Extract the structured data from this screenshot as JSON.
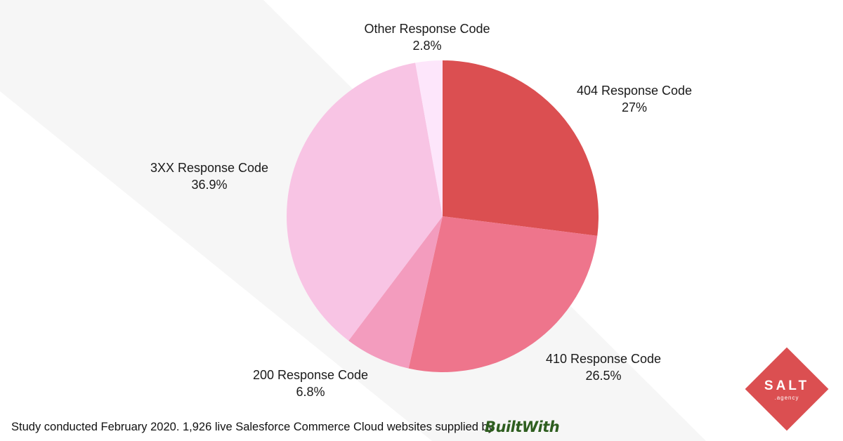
{
  "chart_data": {
    "type": "pie",
    "title": "",
    "start_angle_deg": 0,
    "direction": "clockwise",
    "slices": [
      {
        "label": "404 Response Code",
        "value": 27,
        "display": "27%",
        "color": "#db4f51"
      },
      {
        "label": "410 Response Code",
        "value": 26.5,
        "display": "26.5%",
        "color": "#ee758c"
      },
      {
        "label": "200 Response Code",
        "value": 6.8,
        "display": "6.8%",
        "color": "#f39cbe"
      },
      {
        "label": "3XX Response Code",
        "value": 36.9,
        "display": "36.9%",
        "color": "#f8c4e4"
      },
      {
        "label": "Other Response Code",
        "value": 2.8,
        "display": "2.8%",
        "color": "#fde6fb"
      }
    ]
  },
  "footer": {
    "text": "Study conducted February 2020. 1,926 live Salesforce Commerce Cloud websites supplied by",
    "builtwith_logo": "BuiltWith"
  },
  "brand": {
    "name": "SALT",
    "sub": ".agency",
    "color": "#db4f51"
  }
}
